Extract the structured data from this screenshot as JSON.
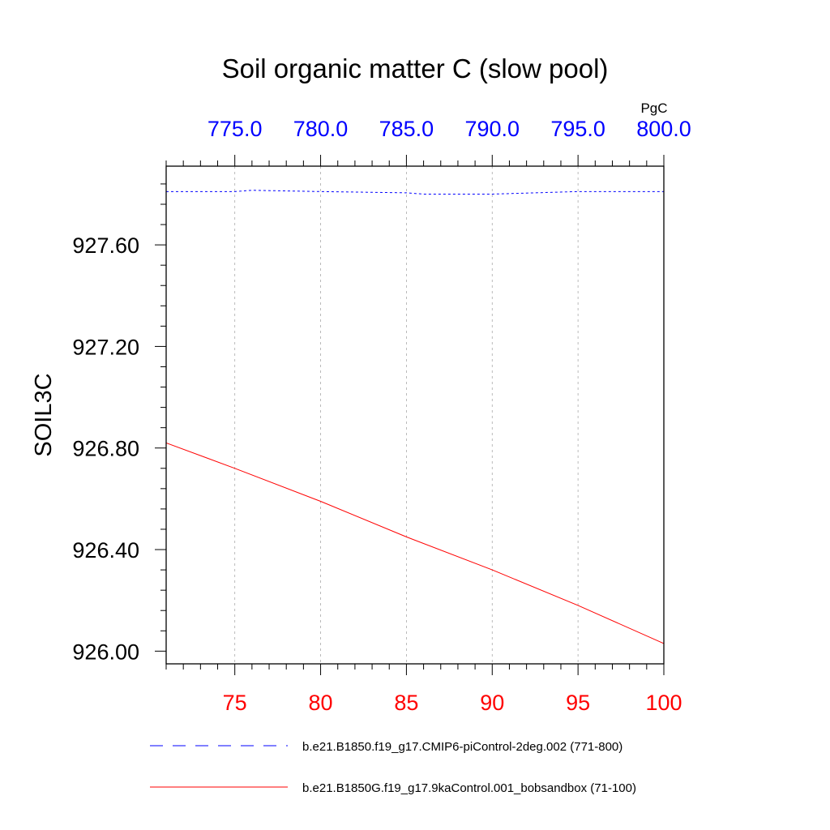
{
  "chart_data": {
    "type": "line",
    "title": "Soil organic matter C (slow pool)",
    "ylabel": "SOIL3C",
    "units_label": "PgC",
    "colors": {
      "bottom_axis": "#ff0000",
      "top_axis": "#0000ff",
      "grid": "#aaaaaa",
      "frame": "#000000"
    },
    "xlim": [
      71,
      100
    ],
    "x_ticks": [
      75,
      80,
      85,
      90,
      95,
      100
    ],
    "x_tick_labels": [
      "75",
      "80",
      "85",
      "90",
      "95",
      "100"
    ],
    "x_top_lim": [
      771,
      800
    ],
    "x_top_ticks": [
      775,
      780,
      785,
      790,
      795,
      800
    ],
    "x_top_tick_labels": [
      "775.0",
      "780.0",
      "785.0",
      "790.0",
      "795.0",
      "800.0"
    ],
    "ylim": [
      925.95,
      927.91
    ],
    "y_ticks": [
      926.0,
      926.4,
      926.8,
      927.2,
      927.6
    ],
    "y_tick_labels": [
      "926.00",
      "926.40",
      "926.80",
      "927.20",
      "927.60"
    ],
    "grid": "vertical dashed",
    "series": [
      {
        "name": "b.e21.B1850.f19_g17.CMIP6-piControl-2deg.002 (771-800)",
        "axis": "top",
        "color": "#0000ff",
        "dash": "dashed",
        "x": [
          771,
          775,
          776,
          780,
          785,
          786,
          790,
          795,
          800
        ],
        "values": [
          927.81,
          927.81,
          927.815,
          927.81,
          927.805,
          927.8,
          927.8,
          927.81,
          927.81
        ]
      },
      {
        "name": "b.e21.B1850G.f19_g17.9kaControl.001_bobsandbox (71-100)",
        "axis": "bottom",
        "color": "#ff0000",
        "dash": "solid",
        "x": [
          71,
          75,
          80,
          85,
          90,
          95,
          100
        ],
        "values": [
          926.82,
          926.72,
          926.59,
          926.45,
          926.32,
          926.18,
          926.03
        ]
      }
    ]
  }
}
